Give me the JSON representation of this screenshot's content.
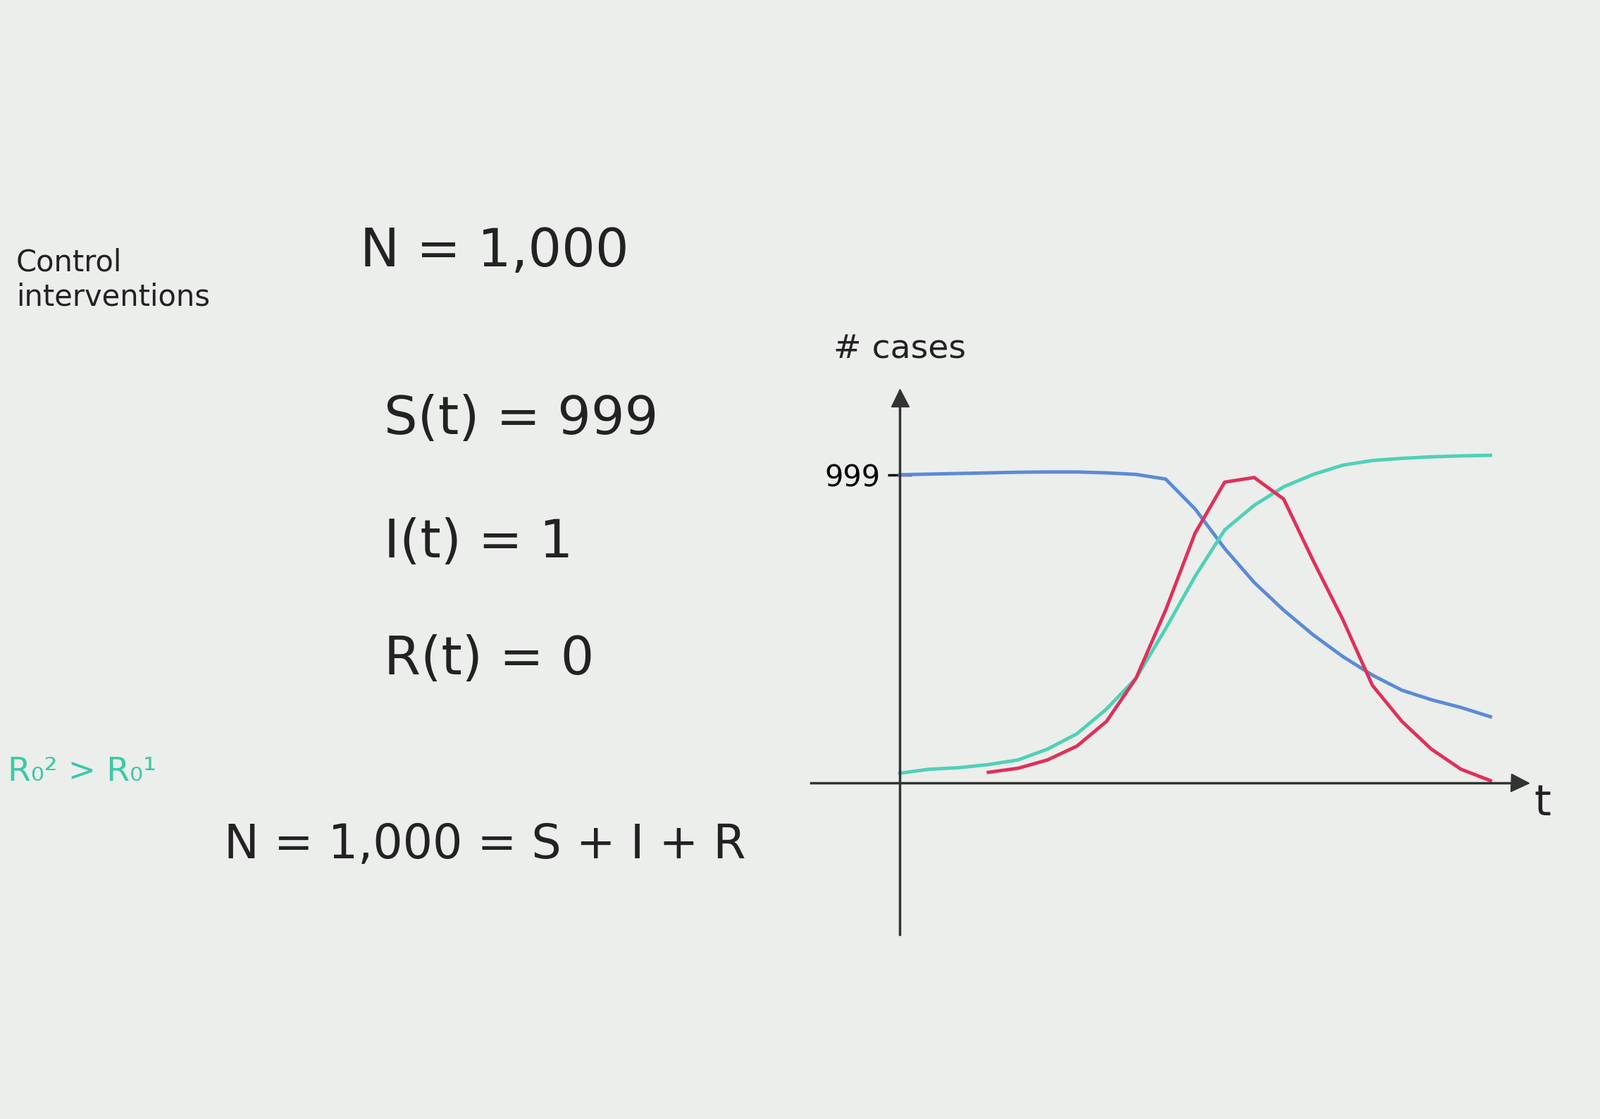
{
  "board": {
    "texts": {
      "note": "Control\ninterventions",
      "population": "N = 1,000",
      "susceptible": "S(t) = 999",
      "infected": "I(t) = 1",
      "recovered": "R(t) = 0",
      "total": "N = 1,000 = S + I + R",
      "comparison": "R₀² > R₀¹"
    },
    "comparison_color": "#3cc9a8"
  },
  "chart_data": {
    "type": "line",
    "ylabel": "# cases",
    "xlabel": "t",
    "x": [
      0,
      0.5,
      1,
      1.5,
      2,
      2.5,
      3,
      3.5,
      4,
      4.5,
      5,
      5.5,
      6,
      6.5,
      7,
      7.5,
      8,
      8.5,
      9,
      9.5,
      10
    ],
    "series": [
      {
        "color": "#5b8bd6",
        "values": [
          999,
          1001,
          1003,
          1005,
          1007,
          1008,
          1008,
          1005,
          1000,
          985,
          888,
          760,
          650,
          560,
          480,
          410,
          350,
          301,
          270,
          245,
          215
        ]
      },
      {
        "color": "#4fd1b5",
        "values": [
          32,
          45,
          50,
          60,
          75,
          110,
          160,
          240,
          340,
          500,
          670,
          820,
          900,
          960,
          1000,
          1030,
          1045,
          1052,
          1057,
          1060,
          1062
        ]
      },
      {
        "color": "#e0305a",
        "values": [
          null,
          null,
          null,
          35,
          48,
          75,
          120,
          200,
          340,
          560,
          810,
          975,
          990,
          920,
          720,
          530,
          317,
          200,
          110,
          45,
          8
        ]
      }
    ],
    "xlim": [
      -1.5,
      10.5
    ],
    "ylim": [
      -490,
      1250
    ],
    "yticks": [
      999
    ],
    "tick_labels": "y"
  }
}
